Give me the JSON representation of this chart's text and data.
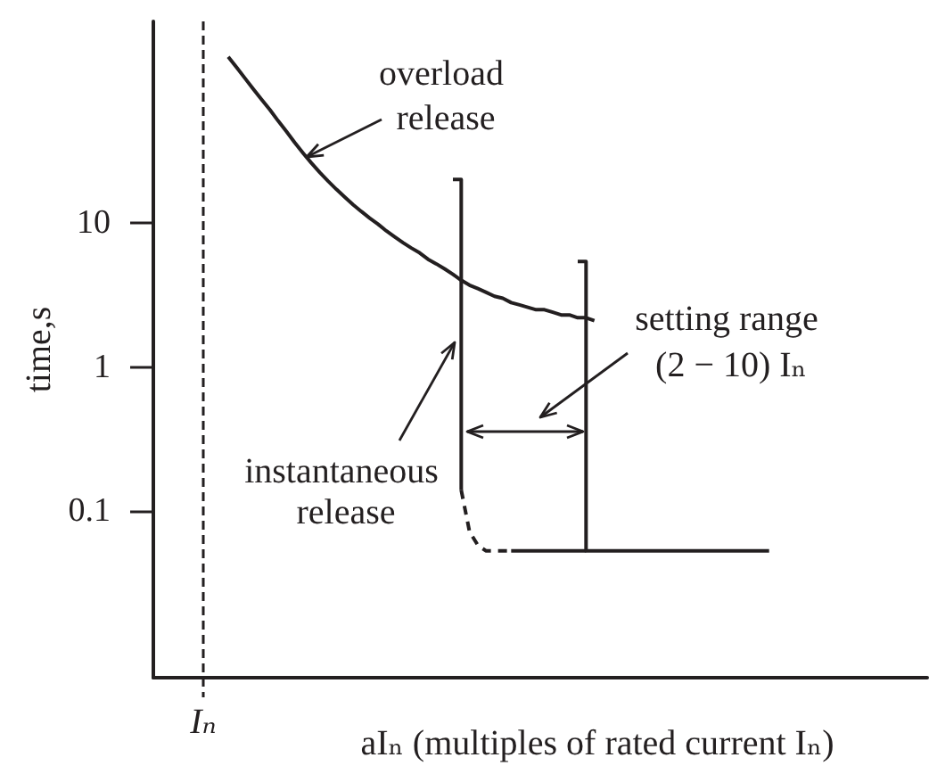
{
  "chart_data": {
    "type": "line",
    "xlabel": "aIₙ (multiples of rated current Iₙ)",
    "ylabel": "time,s",
    "annotations": [
      "overload release",
      "instantaneous release",
      "setting range (2 − 10) Iₙ"
    ],
    "categories": [
      null,
      null,
      null,
      null,
      null,
      null,
      "Iₙ",
      null,
      null,
      null,
      null,
      null,
      null,
      null,
      null,
      null,
      null,
      null,
      null,
      null,
      null,
      null,
      null,
      null,
      null,
      null,
      null,
      null,
      null,
      null,
      null,
      null,
      null,
      null,
      null,
      null,
      null,
      null,
      null,
      null,
      null,
      null,
      null,
      null,
      null,
      null,
      null,
      null,
      null,
      null,
      null,
      null,
      null,
      null,
      null,
      null,
      null,
      null,
      null,
      null,
      null,
      null,
      null,
      null,
      null,
      null,
      null,
      null,
      null,
      null,
      null,
      null,
      null,
      null,
      null,
      null,
      null,
      null,
      null,
      null,
      null,
      null,
      null,
      null,
      null,
      null,
      null,
      null,
      null,
      null,
      null,
      null,
      null,
      null
    ],
    "log": "y",
    "ylim": [
      0.007,
      250
    ],
    "yticks": [
      0.1,
      1,
      10
    ],
    "marker": "none",
    "grid": "x",
    "series": [
      {
        "color": "#231f20",
        "values": [
          null,
          null,
          null,
          null,
          null,
          null,
          null,
          null,
          null,
          142,
          120,
          101,
          85,
          72,
          61,
          51,
          43,
          36,
          30.5,
          26,
          22.4,
          19.5,
          17.1,
          15.1,
          13.4,
          12,
          10.8,
          9.8,
          8.8,
          8.0,
          7.3,
          6.7,
          6.2,
          5.6,
          5.2,
          4.8,
          4.4,
          4.0,
          3.7,
          3.5,
          3.3,
          3.1,
          3.0,
          2.8,
          2.7,
          2.6,
          2.5,
          2.5,
          2.4,
          2.3,
          2.3,
          2.2,
          2.2,
          2.1,
          null,
          null,
          null,
          null,
          null,
          null,
          null,
          null,
          null,
          null,
          null,
          null,
          null,
          null,
          null,
          null,
          null,
          null,
          null,
          null,
          null,
          null,
          null,
          null,
          null,
          null,
          null,
          null,
          null,
          null,
          null,
          null,
          null,
          null,
          null,
          null,
          null,
          null,
          null,
          null
        ]
      },
      {
        "type": "step",
        "color": "#231f20",
        "values": [
          null,
          null,
          null,
          null,
          null,
          null,
          null,
          null,
          null,
          null,
          null,
          null,
          null,
          null,
          null,
          null,
          null,
          null,
          null,
          null,
          null,
          null,
          null,
          null,
          null,
          null,
          null,
          null,
          null,
          null,
          null,
          null,
          null,
          null,
          null,
          null,
          20,
          0.14,
          null,
          null,
          null,
          null,
          null,
          0.053,
          0.053,
          0.053,
          0.053,
          0.053,
          0.053,
          0.053,
          0.053,
          0.053,
          0.053,
          null,
          null,
          null,
          null,
          null,
          null,
          null,
          null,
          null,
          null,
          null,
          null,
          null,
          null,
          null,
          null,
          null,
          null,
          null,
          null,
          null,
          null,
          null,
          null,
          null,
          null,
          null,
          null,
          null,
          null,
          null,
          null,
          null,
          null,
          null,
          null,
          null,
          null,
          null,
          null,
          null
        ]
      },
      {
        "color": "#231f20",
        "line_style": "dashed",
        "values": [
          null,
          null,
          null,
          null,
          null,
          null,
          null,
          null,
          null,
          null,
          null,
          null,
          null,
          null,
          null,
          null,
          null,
          null,
          null,
          null,
          null,
          null,
          null,
          null,
          null,
          null,
          null,
          null,
          null,
          null,
          null,
          null,
          null,
          null,
          null,
          null,
          null,
          0.14,
          0.072,
          0.058,
          0.053,
          0.053,
          0.053,
          0.053,
          null,
          null,
          null,
          null,
          null,
          null,
          null,
          null,
          null,
          null,
          null,
          null,
          null,
          null,
          null,
          null,
          null,
          null,
          null,
          null,
          null,
          null,
          null,
          null,
          null,
          null,
          null,
          null,
          null,
          null,
          null,
          null,
          null,
          null,
          null,
          null,
          null,
          null,
          null,
          null,
          null,
          null,
          null,
          null,
          null,
          null,
          null,
          null,
          null,
          null
        ]
      },
      {
        "type": "step",
        "color": "#231f20",
        "values": [
          null,
          null,
          null,
          null,
          null,
          null,
          null,
          null,
          null,
          null,
          null,
          null,
          null,
          null,
          null,
          null,
          null,
          null,
          null,
          null,
          null,
          null,
          null,
          null,
          null,
          null,
          null,
          null,
          null,
          null,
          null,
          null,
          null,
          null,
          null,
          null,
          null,
          null,
          null,
          null,
          null,
          null,
          null,
          null,
          null,
          null,
          null,
          null,
          null,
          null,
          null,
          5.4,
          0.053,
          0.053,
          0.053,
          0.053,
          0.053,
          0.053,
          0.053,
          0.053,
          0.053,
          0.053,
          0.053,
          0.053,
          0.053,
          0.053,
          0.053,
          0.053,
          0.053,
          0.053,
          0.053,
          0.053,
          0.053,
          0.053,
          0.053,
          null,
          null,
          null,
          null,
          null,
          null,
          null,
          null,
          null,
          null,
          null,
          null,
          null,
          null,
          null,
          null,
          null,
          null,
          null
        ]
      }
    ]
  }
}
